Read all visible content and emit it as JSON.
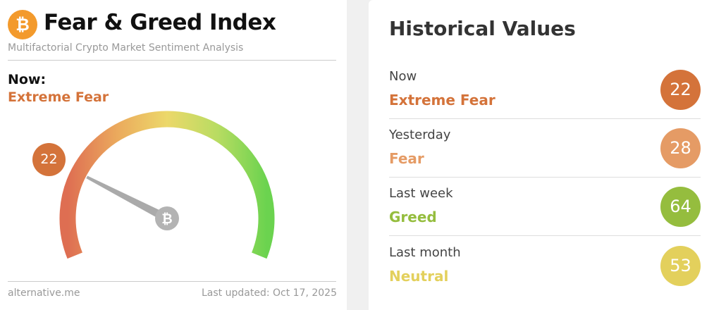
{
  "header": {
    "logo_text": "₿",
    "title": "Fear & Greed Index",
    "subtitle": "Multifactorial Crypto Market Sentiment Analysis"
  },
  "now": {
    "label": "Now:",
    "classification": "Extreme Fear",
    "value": "22",
    "value_number": 22,
    "color": "#d4733a"
  },
  "gauge": {
    "min": 0,
    "max": 100,
    "needle_value": 22,
    "hub_icon": "bitcoin-icon",
    "hub_text": "₿"
  },
  "footer": {
    "source": "alternative.me",
    "updated": "Last updated: Oct 17, 2025"
  },
  "historical": {
    "title": "Historical Values",
    "rows": [
      {
        "label": "Now",
        "classification": "Extreme Fear",
        "value": "22",
        "color": "#d4733a"
      },
      {
        "label": "Yesterday",
        "classification": "Fear",
        "value": "28",
        "color": "#e59b65"
      },
      {
        "label": "Last week",
        "classification": "Greed",
        "value": "64",
        "color": "#95bd3e"
      },
      {
        "label": "Last month",
        "classification": "Neutral",
        "value": "53",
        "color": "#e3d05c"
      }
    ]
  }
}
